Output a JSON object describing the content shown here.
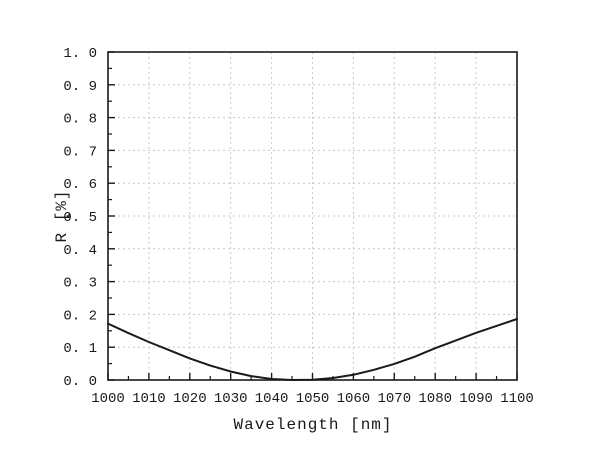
{
  "figure": {
    "background": "#ffffff",
    "colors": {
      "axis": "#1a1a1a",
      "grid": "#c8c8c8",
      "curve": "#1a1a1a",
      "text": "#1a1a1a"
    }
  },
  "chart_data": {
    "type": "line",
    "title": "",
    "xlabel": "Wavelength [nm]",
    "ylabel": "R [%]",
    "xlim": [
      1000,
      1100
    ],
    "ylim": [
      0.0,
      1.0
    ],
    "grid": "major-dashed",
    "legend": "none",
    "x_ticks": [
      1000,
      1010,
      1020,
      1030,
      1040,
      1050,
      1060,
      1070,
      1080,
      1090,
      1100
    ],
    "x_tick_labels": [
      "1000",
      "1010",
      "1020",
      "1030",
      "1040",
      "1050",
      "1060",
      "1070",
      "1080",
      "1090",
      "1100"
    ],
    "x_minor_step": 5,
    "y_ticks": [
      0.0,
      0.1,
      0.2,
      0.3,
      0.4,
      0.5,
      0.6,
      0.7,
      0.8,
      0.9,
      1.0
    ],
    "y_tick_labels": [
      "0. 0",
      "0. 1",
      "0. 2",
      "0. 3",
      "0. 4",
      "0. 5",
      "0. 6",
      "0. 7",
      "0. 8",
      "0. 9",
      "1. 0"
    ],
    "y_minor_step": 0.05,
    "series": [
      {
        "name": "R",
        "x": [
          1000,
          1005,
          1010,
          1015,
          1020,
          1025,
          1030,
          1035,
          1040,
          1045,
          1050,
          1055,
          1060,
          1065,
          1070,
          1075,
          1080,
          1085,
          1090,
          1095,
          1100
        ],
        "y": [
          0.172,
          0.143,
          0.116,
          0.091,
          0.066,
          0.044,
          0.026,
          0.012,
          0.003,
          0.0,
          0.001,
          0.006,
          0.016,
          0.031,
          0.049,
          0.071,
          0.097,
          0.12,
          0.144,
          0.165,
          0.186
        ]
      }
    ]
  }
}
